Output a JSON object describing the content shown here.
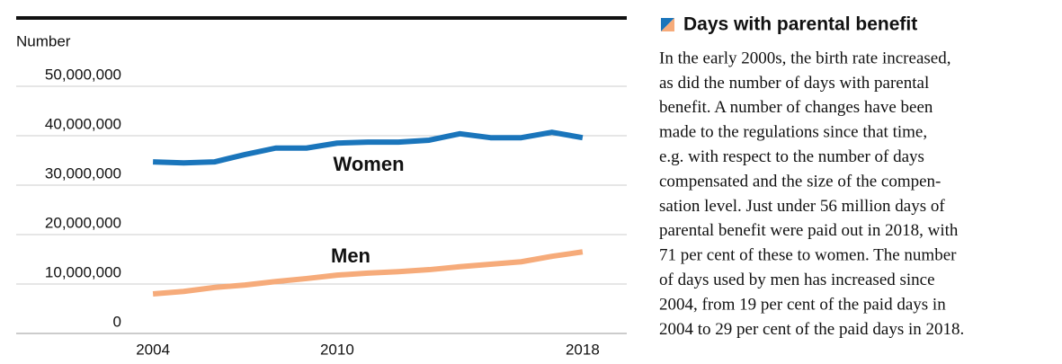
{
  "chart_data": {
    "type": "line",
    "y_axis_label": "Number",
    "x": [
      2004,
      2005,
      2006,
      2007,
      2008,
      2009,
      2010,
      2011,
      2012,
      2013,
      2014,
      2015,
      2016,
      2017,
      2018
    ],
    "series": [
      {
        "name": "Women",
        "color": "#1a75bb",
        "values": [
          34700000,
          34500000,
          34700000,
          36200000,
          37500000,
          37500000,
          38500000,
          38700000,
          38700000,
          39100000,
          40400000,
          39600000,
          39600000,
          40700000,
          39600000
        ]
      },
      {
        "name": "Men",
        "color": "#f6ab7a",
        "values": [
          8000000,
          8500000,
          9300000,
          9800000,
          10500000,
          11100000,
          11800000,
          12200000,
          12500000,
          12900000,
          13500000,
          14000000,
          14500000,
          15600000,
          16500000
        ]
      }
    ],
    "xlim": [
      2003,
      2019
    ],
    "xticks": [
      2004,
      2010,
      2018
    ],
    "ylim": [
      0,
      50000000
    ],
    "yticks": [
      0,
      {
        "value": 10000000,
        "label": "10,000,000"
      },
      {
        "value": 20000000,
        "label": "20,000,000"
      },
      {
        "value": 30000000,
        "label": "30,000,000"
      },
      {
        "value": 40000000,
        "label": "40,000,000"
      },
      {
        "value": 50000000,
        "label": "50,000,000"
      }
    ],
    "grid": true
  },
  "sidebar": {
    "title": "Days with parental benefit",
    "paragraph_lines": [
      "In the early 2000s, the birth rate increased,",
      "as did the number of days with parental",
      "benefit. A number of changes have been",
      "made to the regulations since that time,",
      "e.g. with respect to the number of days",
      "compensated and the size of the compen-",
      "sation level. Just under 56 million days of",
      "parental benefit were paid out in 2018, with",
      "71 per cent of these to women. The number",
      "of days used by men has increased since",
      "2004, from 19 per cent of the paid days in",
      "2004 to 29 per cent of the paid days in 2018."
    ]
  }
}
